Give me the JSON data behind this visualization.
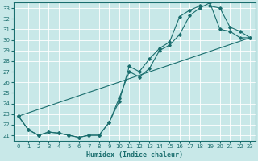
{
  "xlabel": "Humidex (Indice chaleur)",
  "bg_color": "#c8e8e8",
  "grid_color": "#d4eeee",
  "line_color": "#1a6e6e",
  "xlim": [
    -0.5,
    23.5
  ],
  "ylim": [
    20.5,
    33.5
  ],
  "xticks": [
    0,
    1,
    2,
    3,
    4,
    5,
    6,
    7,
    8,
    9,
    10,
    11,
    12,
    13,
    14,
    15,
    16,
    17,
    18,
    19,
    20,
    21,
    22,
    23
  ],
  "yticks": [
    21,
    22,
    23,
    24,
    25,
    26,
    27,
    28,
    29,
    30,
    31,
    32,
    33
  ],
  "line1_x": [
    0,
    1,
    2,
    3,
    4,
    5,
    6,
    7,
    8,
    9,
    10,
    11,
    12,
    13,
    14,
    15,
    16,
    17,
    18,
    19,
    20,
    21,
    22,
    23
  ],
  "line1_y": [
    22.8,
    21.5,
    21.0,
    21.3,
    21.2,
    21.0,
    20.8,
    21.0,
    21.0,
    22.2,
    24.5,
    27.0,
    26.5,
    27.3,
    29.0,
    29.5,
    30.5,
    32.3,
    33.0,
    33.5,
    31.0,
    30.8,
    30.2,
    30.2
  ],
  "line2_x": [
    0,
    1,
    2,
    3,
    4,
    5,
    6,
    7,
    8,
    9,
    10,
    11,
    12,
    13,
    14,
    15,
    16,
    17,
    18,
    19,
    20,
    21,
    22,
    23
  ],
  "line2_y": [
    22.8,
    21.5,
    21.0,
    21.3,
    21.2,
    21.0,
    20.8,
    21.0,
    21.0,
    22.2,
    24.2,
    27.5,
    27.0,
    28.2,
    29.2,
    29.8,
    32.2,
    32.8,
    33.2,
    33.2,
    33.0,
    31.2,
    30.8,
    30.2
  ],
  "line3_x": [
    0,
    23
  ],
  "line3_y": [
    22.8,
    30.2
  ]
}
